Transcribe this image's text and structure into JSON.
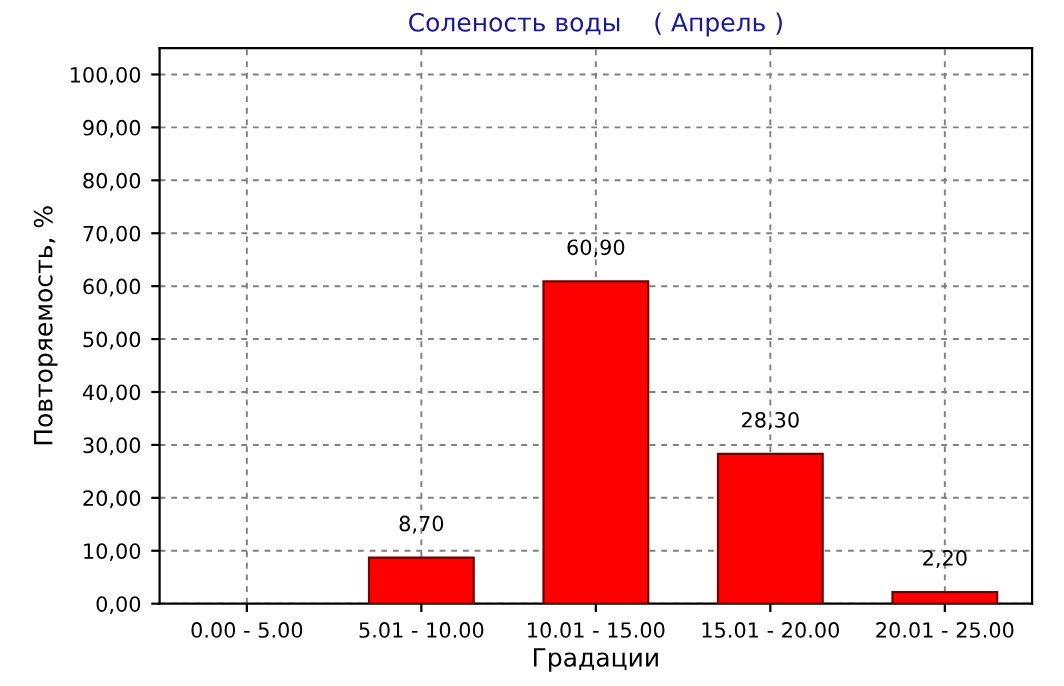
{
  "chart_data": {
    "type": "bar",
    "title": "Соленость воды    ( Апрель )",
    "xlabel": "Градации",
    "ylabel": "Повторяемость, %",
    "categories": [
      "0.00 - 5.00",
      "5.01 - 10.00",
      "10.01 - 15.00",
      "15.01 - 20.00",
      "20.01 - 25.00"
    ],
    "values": [
      0,
      8.7,
      60.9,
      28.3,
      2.2
    ],
    "value_labels": [
      null,
      "8,70",
      "60,90",
      "28,30",
      "2,20"
    ],
    "color": "#ff0000",
    "ylim": [
      0,
      105
    ],
    "yticks": [
      {
        "value": 0,
        "label": "0,00"
      },
      {
        "value": 10,
        "label": "10,00"
      },
      {
        "value": 20,
        "label": "20,00"
      },
      {
        "value": 30,
        "label": "30,00"
      },
      {
        "value": 40,
        "label": "40,00"
      },
      {
        "value": 50,
        "label": "50,00"
      },
      {
        "value": 60,
        "label": "60,00"
      },
      {
        "value": 70,
        "label": "70,00"
      },
      {
        "value": 80,
        "label": "80,00"
      },
      {
        "value": 90,
        "label": "90,00"
      },
      {
        "value": 100,
        "label": "100,00"
      }
    ],
    "grid": true
  }
}
